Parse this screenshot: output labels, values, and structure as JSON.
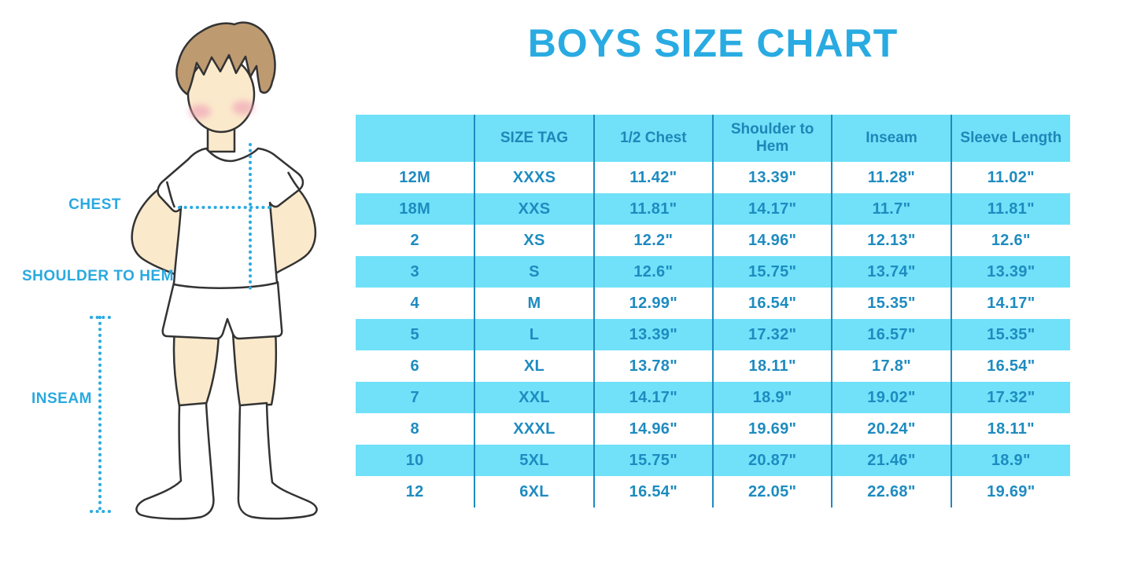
{
  "title": "BOYS SIZE CHART",
  "figure": {
    "description": "cartoon boy, hands on hips, white t-shirt, white shorts, knee socks",
    "labels": {
      "chest": "CHEST",
      "shoulder_to_hem": "SHOULDER TO HEM",
      "inseam": "INSEAM"
    }
  },
  "chart_data": {
    "type": "table",
    "title": "BOYS SIZE CHART",
    "columns": [
      "",
      "SIZE TAG",
      "1/2 Chest",
      "Shoulder to Hem",
      "Inseam",
      "Sleeve Length"
    ],
    "rows": [
      [
        "12M",
        "XXXS",
        "11.42\"",
        "13.39\"",
        "11.28\"",
        "11.02\""
      ],
      [
        "18M",
        "XXS",
        "11.81\"",
        "14.17\"",
        "11.7\"",
        "11.81\""
      ],
      [
        "2",
        "XS",
        "12.2\"",
        "14.96\"",
        "12.13\"",
        "12.6\""
      ],
      [
        "3",
        "S",
        "12.6\"",
        "15.75\"",
        "13.74\"",
        "13.39\""
      ],
      [
        "4",
        "M",
        "12.99\"",
        "16.54\"",
        "15.35\"",
        "14.17\""
      ],
      [
        "5",
        "L",
        "13.39\"",
        "17.32\"",
        "16.57\"",
        "15.35\""
      ],
      [
        "6",
        "XL",
        "13.78\"",
        "18.11\"",
        "17.8\"",
        "16.54\""
      ],
      [
        "7",
        "XXL",
        "14.17\"",
        "18.9\"",
        "19.02\"",
        "17.32\""
      ],
      [
        "8",
        "XXXL",
        "14.96\"",
        "19.69\"",
        "20.24\"",
        "18.11\""
      ],
      [
        "10",
        "5XL",
        "15.75\"",
        "20.87\"",
        "21.46\"",
        "18.9\""
      ],
      [
        "12",
        "6XL",
        "16.54\"",
        "22.05\"",
        "22.68\"",
        "19.69\""
      ]
    ],
    "row_striping": "alternating white / cyan, header cyan",
    "legend_position": "none",
    "grid": "vertical column dividers only"
  },
  "colors": {
    "title_blue": "#29ABE2",
    "label_blue": "#29A9E0",
    "table_text_blue": "#1E8BC0",
    "stripe_cyan": "#70E1F9",
    "divider_blue": "#1E8BC0",
    "measure_line_blue": "#29ABE2",
    "skin": "#FBE9CC",
    "hair_brown": "#BE9A71",
    "blush_pink": "#F0A3B6",
    "outline": "#333333"
  }
}
